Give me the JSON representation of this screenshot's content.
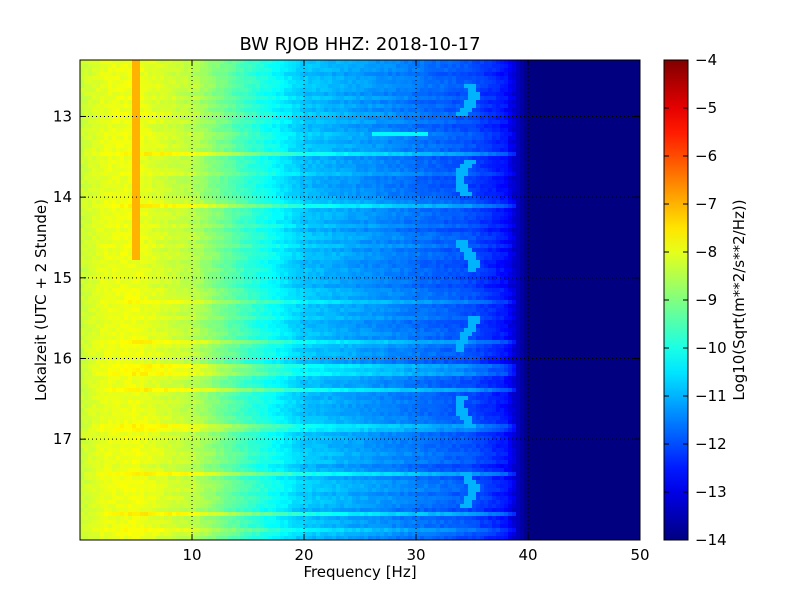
{
  "chart_data": {
    "type": "heatmap",
    "title": "BW RJOB HHZ: 2018-10-17",
    "xlabel": "Frequency [Hz]",
    "ylabel": "Lokalzeit (UTC + 2 Stunde)",
    "xlim": [
      0,
      50
    ],
    "ylim": [
      12.3,
      18.25
    ],
    "y_inverted": true,
    "x_ticks": [
      10,
      20,
      30,
      40,
      50
    ],
    "y_ticks": [
      13,
      14,
      15,
      16,
      17
    ],
    "grid": true,
    "colormap": "jet",
    "colorbar": {
      "label": "Log10(Sqrt(m**2/s**2/Hz))",
      "range": [
        -14,
        -4
      ],
      "ticks": [
        -4,
        -5,
        -6,
        -7,
        -8,
        -9,
        -10,
        -11,
        -12,
        -13,
        -14
      ]
    },
    "spectral_profile": {
      "frequency_hz": [
        0,
        2,
        5,
        10,
        15,
        20,
        25,
        30,
        35,
        38,
        40,
        42,
        50
      ],
      "log10_amplitude": [
        -8.3,
        -8.0,
        -7.9,
        -8.4,
        -9.7,
        -10.8,
        -11.2,
        -11.6,
        -12.0,
        -12.6,
        -14.0,
        -14.0,
        -14.0
      ]
    },
    "features": [
      {
        "kind": "narrowband_line",
        "frequency_hz": 5.0,
        "time_range": [
          12.3,
          14.8
        ],
        "log10_amplitude": -7.0
      },
      {
        "kind": "narrowband_line",
        "frequency_hz": 34.5,
        "time_range": [
          12.3,
          18.25
        ],
        "log10_amplitude": -11.0,
        "shape": "hooks"
      },
      {
        "kind": "broadband_stripe",
        "time": 13.2,
        "freq_range": [
          26,
          31
        ],
        "log10_amplitude": -10.3
      }
    ]
  }
}
